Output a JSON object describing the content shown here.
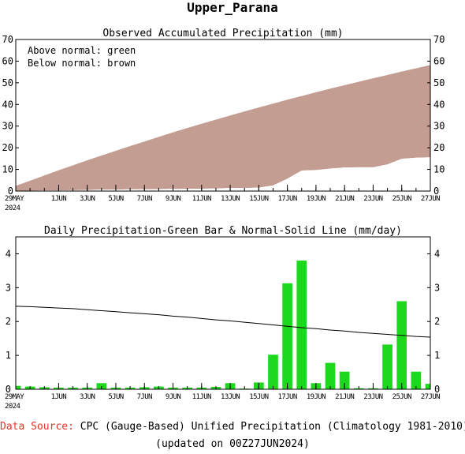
{
  "title": "Upper_Parana",
  "top_chart": {
    "title": "Observed Accumulated Precipitation (mm)",
    "legend_lines": [
      "Above normal: green",
      "Below normal: brown"
    ],
    "colors": {
      "below": "#c49d92",
      "above": "#22dd22",
      "observed": "#ffffff"
    }
  },
  "bottom_chart": {
    "title": "Daily Precipitation-Green Bar & Normal-Solid Line (mm/day)",
    "colors": {
      "bar": "#1ed81e",
      "normal": "#000000"
    }
  },
  "footer": {
    "source_label": "Data Source:",
    "source_text": "CPC (Gauge-Based) Unified Precipitation (Climatology 1981-2010)",
    "updated": "(updated on 00Z27JUN2024)"
  },
  "chart_data": [
    {
      "type": "area",
      "title": "Observed Accumulated Precipitation (mm)",
      "x_start": "29MAY2024",
      "x_end": "27JUN2024",
      "ylim": [
        0,
        70
      ],
      "yticks": [
        0,
        10,
        20,
        30,
        40,
        50,
        60,
        70
      ],
      "x_tick_labels": [
        {
          "day": 0,
          "label": "29MAY",
          "sub": "2024"
        },
        {
          "day": 3,
          "label": "1JUN"
        },
        {
          "day": 5,
          "label": "3JUN"
        },
        {
          "day": 7,
          "label": "5JUN"
        },
        {
          "day": 9,
          "label": "7JUN"
        },
        {
          "day": 11,
          "label": "9JUN"
        },
        {
          "day": 13,
          "label": "11JUN"
        },
        {
          "day": 15,
          "label": "13JUN"
        },
        {
          "day": 17,
          "label": "15JUN"
        },
        {
          "day": 19,
          "label": "17JUN"
        },
        {
          "day": 21,
          "label": "19JUN"
        },
        {
          "day": 23,
          "label": "21JUN"
        },
        {
          "day": 25,
          "label": "23JUN"
        },
        {
          "day": 27,
          "label": "25JUN"
        },
        {
          "day": 29,
          "label": "27JUN"
        }
      ],
      "series": [
        {
          "name": "Normal accumulated",
          "values": [
            2.4,
            4.8,
            7.2,
            9.6,
            11.9,
            14.2,
            16.4,
            18.6,
            20.8,
            22.9,
            25.0,
            27.1,
            29.1,
            31.1,
            33.0,
            34.9,
            36.8,
            38.6,
            40.4,
            42.2,
            43.9,
            45.6,
            47.3,
            48.9,
            50.5,
            52.1,
            53.6,
            55.2,
            56.7,
            58.2
          ]
        },
        {
          "name": "Observed accumulated",
          "values": [
            0.1,
            0.2,
            0.3,
            0.3,
            0.4,
            0.5,
            0.7,
            0.7,
            0.8,
            0.8,
            0.9,
            1.0,
            1.0,
            1.1,
            1.2,
            1.4,
            1.4,
            1.6,
            2.6,
            5.7,
            9.5,
            9.7,
            10.4,
            10.9,
            11.0,
            11.0,
            12.3,
            14.9,
            15.4,
            15.6
          ]
        }
      ]
    },
    {
      "type": "bar",
      "title": "Daily Precipitation-Green Bar & Normal-Solid Line (mm/day)",
      "ylim": [
        0,
        4.5
      ],
      "yticks": [
        0,
        1,
        2,
        3,
        4
      ],
      "series": [
        {
          "name": "Daily precipitation",
          "values": [
            0.1,
            0.08,
            0.06,
            0.05,
            0.05,
            0.05,
            0.18,
            0.05,
            0.05,
            0.06,
            0.08,
            0.05,
            0.05,
            0.05,
            0.07,
            0.18,
            0.02,
            0.2,
            1.02,
            3.13,
            3.8,
            0.18,
            0.78,
            0.52,
            0.03,
            0.03,
            1.32,
            2.6,
            0.52,
            0.16
          ]
        },
        {
          "name": "Normal",
          "values": [
            2.45,
            2.44,
            2.42,
            2.4,
            2.38,
            2.35,
            2.32,
            2.29,
            2.26,
            2.23,
            2.2,
            2.16,
            2.13,
            2.09,
            2.05,
            2.02,
            1.98,
            1.94,
            1.9,
            1.86,
            1.82,
            1.79,
            1.75,
            1.72,
            1.68,
            1.65,
            1.62,
            1.59,
            1.56,
            1.54
          ]
        }
      ]
    }
  ]
}
